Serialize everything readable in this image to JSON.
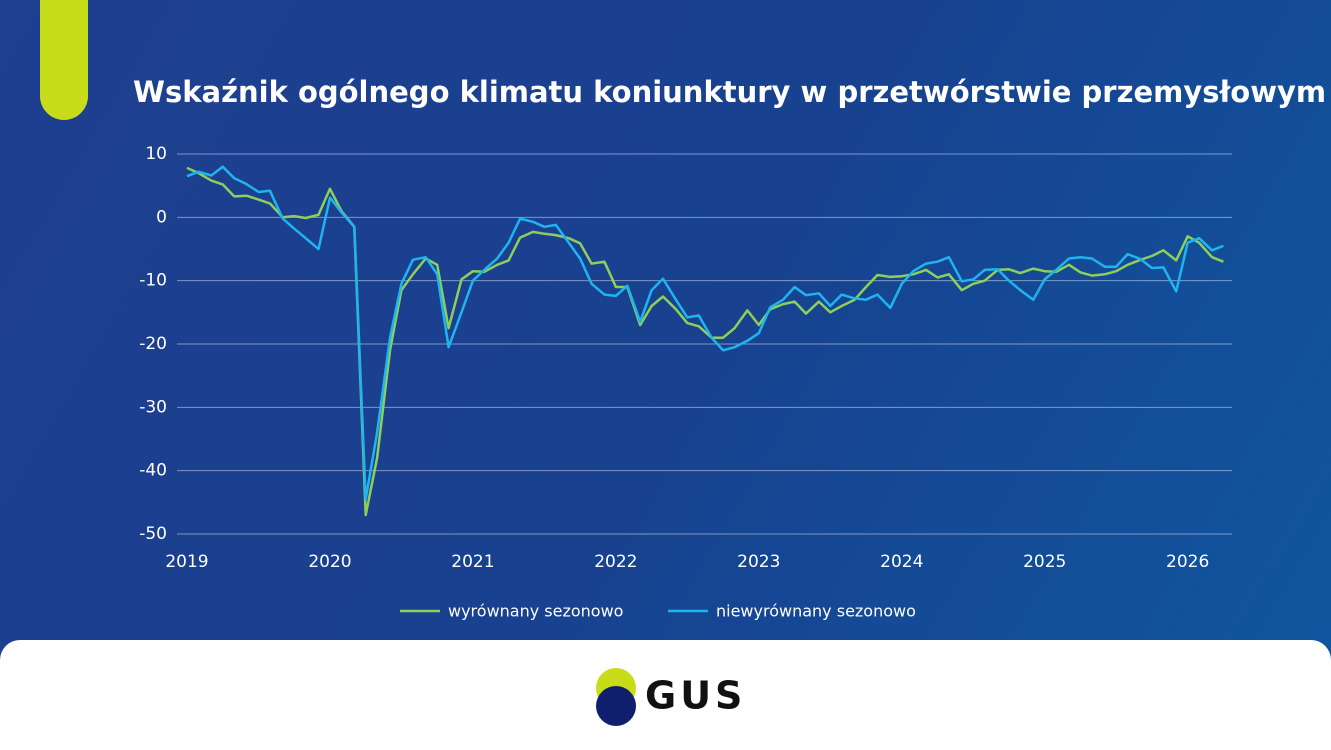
{
  "chart_data": {
    "type": "line",
    "title": "Wskaźnik ogólnego klimatu koniunktury w przetwórstwie przemysłowym",
    "x": [
      2019,
      2019.08,
      2019.17,
      2019.25,
      2019.33,
      2019.42,
      2019.5,
      2019.58,
      2019.67,
      2019.75,
      2019.83,
      2019.92,
      2020,
      2020.08,
      2020.17,
      2020.25,
      2020.33,
      2020.42,
      2020.5,
      2020.58,
      2020.67,
      2020.75,
      2020.83,
      2020.92,
      2021,
      2021.08,
      2021.17,
      2021.25,
      2021.33,
      2021.42,
      2021.5,
      2021.58,
      2021.67,
      2021.75,
      2021.83,
      2021.92,
      2022,
      2022.08,
      2022.17,
      2022.25,
      2022.33,
      2022.42,
      2022.5,
      2022.58,
      2022.67,
      2022.75,
      2022.83,
      2022.92,
      2023,
      2023.08,
      2023.17,
      2023.25,
      2023.33,
      2023.42,
      2023.5,
      2023.58,
      2023.67,
      2023.75,
      2023.83,
      2023.92,
      2024,
      2024.08,
      2024.17,
      2024.25,
      2024.33,
      2024.42,
      2024.5,
      2024.58,
      2024.67,
      2024.75,
      2024.83,
      2024.92,
      2025,
      2025.08,
      2025.17,
      2025.25,
      2025.33,
      2025.42,
      2025.5,
      2025.58,
      2025.67,
      2025.75,
      2025.83,
      2025.92,
      2026,
      2026.08,
      2026.17,
      2026.25
    ],
    "series": [
      {
        "name": "wyrównany sezonowo",
        "color": "#8ccf5a",
        "values": [
          7.8,
          7,
          5.8,
          5.2,
          3.3,
          3.4,
          2.8,
          2.2,
          0,
          0.2,
          -0.1,
          0.4,
          4.5,
          1,
          -1.5,
          -47,
          -38,
          -21,
          -11.5,
          -9,
          -6.5,
          -7.5,
          -17.5,
          -9.8,
          -8.5,
          -8.6,
          -7.5,
          -6.8,
          -3.2,
          -2.3,
          -2.6,
          -2.8,
          -3.3,
          -4.1,
          -7.3,
          -7,
          -11,
          -11,
          -17,
          -14,
          -12.5,
          -14.5,
          -16.7,
          -17.2,
          -19,
          -19,
          -17.5,
          -14.7,
          -17,
          -14.5,
          -13.7,
          -13.3,
          -15.2,
          -13.3,
          -15,
          -14,
          -13,
          -11,
          -9.1,
          -9.4,
          -9.3,
          -9,
          -8.3,
          -9.5,
          -9,
          -11.5,
          -10.5,
          -10,
          -8.3,
          -8.2,
          -8.8,
          -8.1,
          -8.5,
          -8.6,
          -7.5,
          -8.7,
          -9.2,
          -9,
          -8.5,
          -7.5,
          -6.7,
          -6.1,
          -5.2,
          -6.8,
          -3,
          -4,
          -6.3,
          -7
        ]
      },
      {
        "name": "niewyrównany sezonowo",
        "color": "#1fb4f0",
        "values": [
          6.5,
          7.2,
          6.6,
          8,
          6.2,
          5.2,
          4,
          4.2,
          -0.2,
          -1.8,
          -3.3,
          -5,
          3.1,
          0.8,
          -1.5,
          -44.5,
          -34,
          -19,
          -10.5,
          -6.7,
          -6.3,
          -9,
          -20.5,
          -15,
          -10,
          -8.3,
          -6.5,
          -4,
          -0.2,
          -0.7,
          -1.5,
          -1.2,
          -4,
          -6.5,
          -10.5,
          -12.2,
          -12.4,
          -10.8,
          -16.5,
          -11.5,
          -9.7,
          -13,
          -15.8,
          -15.5,
          -19,
          -21,
          -20.5,
          -19.5,
          -18.3,
          -14.2,
          -13,
          -11,
          -12.3,
          -12,
          -14,
          -12.2,
          -12.8,
          -13,
          -12.2,
          -14.3,
          -10.5,
          -8.5,
          -7.3,
          -7,
          -6.3,
          -10.1,
          -9.8,
          -8.3,
          -8.2,
          -10,
          -11.5,
          -13,
          -9.8,
          -8.3,
          -6.5,
          -6.3,
          -6.5,
          -7.8,
          -7.8,
          -5.8,
          -6.6,
          -8,
          -7.9,
          -11.7,
          -4,
          -3.3,
          -5.2,
          -4.5
        ]
      }
    ],
    "xlim": [
      2019,
      2026.31
    ],
    "xticks": [
      2019,
      2020,
      2021,
      2022,
      2023,
      2024,
      2025,
      2026
    ],
    "ylim": [
      -50,
      10
    ],
    "yticks": [
      10,
      0,
      -10,
      -20,
      -30,
      -40,
      -50
    ],
    "grid": true
  },
  "logo": "GUS"
}
